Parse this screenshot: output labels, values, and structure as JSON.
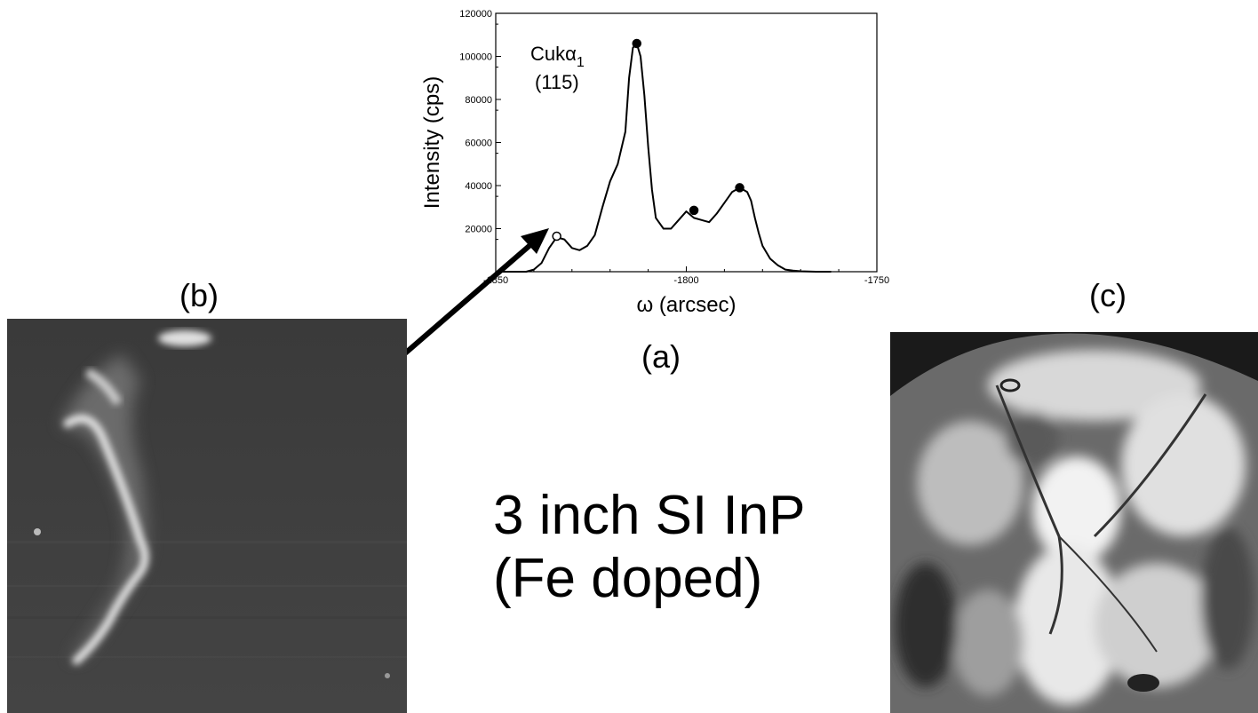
{
  "labels": {
    "panel_a": "(a)",
    "panel_b": "(b)",
    "panel_c": "(c)"
  },
  "caption": {
    "line1": "3 inch SI InP",
    "line2": "(Fe doped)"
  },
  "chart_data": {
    "type": "line",
    "annotation": {
      "line1_main": "Cukα",
      "line1_sub": "1",
      "line2": "(115)"
    },
    "xlabel": "ω (arcsec)",
    "ylabel": "Intensity (cps)",
    "xlim": [
      -1850,
      -1750
    ],
    "ylim": [
      0,
      120000
    ],
    "x_ticks": [
      -1850,
      -1800,
      -1750
    ],
    "x_tick_labels": [
      "-1850",
      "-1800",
      "-1750"
    ],
    "y_ticks": [
      20000,
      40000,
      60000,
      80000,
      100000,
      120000
    ],
    "y_tick_labels": [
      "20000",
      "40000",
      "60000",
      "80000",
      "100000",
      "120000"
    ],
    "series": [
      {
        "x": [
          -1850,
          -1842,
          -1840,
          -1838,
          -1836,
          -1834,
          -1832,
          -1830,
          -1828,
          -1826,
          -1824,
          -1822,
          -1820,
          -1818,
          -1816,
          -1815,
          -1814,
          -1813,
          -1812,
          -1811,
          -1810,
          -1809,
          -1808,
          -1806,
          -1804,
          -1802,
          -1800,
          -1798,
          -1796,
          -1794,
          -1792,
          -1790,
          -1788,
          -1786,
          -1784,
          -1783,
          -1782,
          -1781,
          -1780,
          -1778,
          -1776,
          -1774,
          -1772,
          -1770,
          -1768,
          -1766,
          -1762
        ],
        "y": [
          0,
          0,
          1000,
          4000,
          11000,
          16000,
          15000,
          11000,
          10000,
          12000,
          17000,
          30000,
          42000,
          50000,
          65000,
          90000,
          104000,
          106000,
          100000,
          82000,
          58000,
          38000,
          25000,
          20000,
          20000,
          24000,
          28000,
          25000,
          24000,
          23000,
          27000,
          32000,
          37000,
          39000,
          37000,
          33000,
          25000,
          18000,
          12000,
          6000,
          3000,
          1000,
          500,
          200,
          100,
          0,
          0
        ]
      }
    ],
    "markers": [
      {
        "x": -1813,
        "y": 106000,
        "filled": true
      },
      {
        "x": -1798,
        "y": 28500,
        "filled": true
      },
      {
        "x": -1786,
        "y": 39000,
        "filled": true
      },
      {
        "x": -1834,
        "y": 16500,
        "filled": false
      }
    ]
  },
  "images": {
    "panel_b": "X-ray topograph (b) of 3 inch SI InP wafer, dark field with bright band",
    "panel_c": "X-ray topograph (c) of 3 inch SI InP wafer, bright high-contrast pattern"
  }
}
